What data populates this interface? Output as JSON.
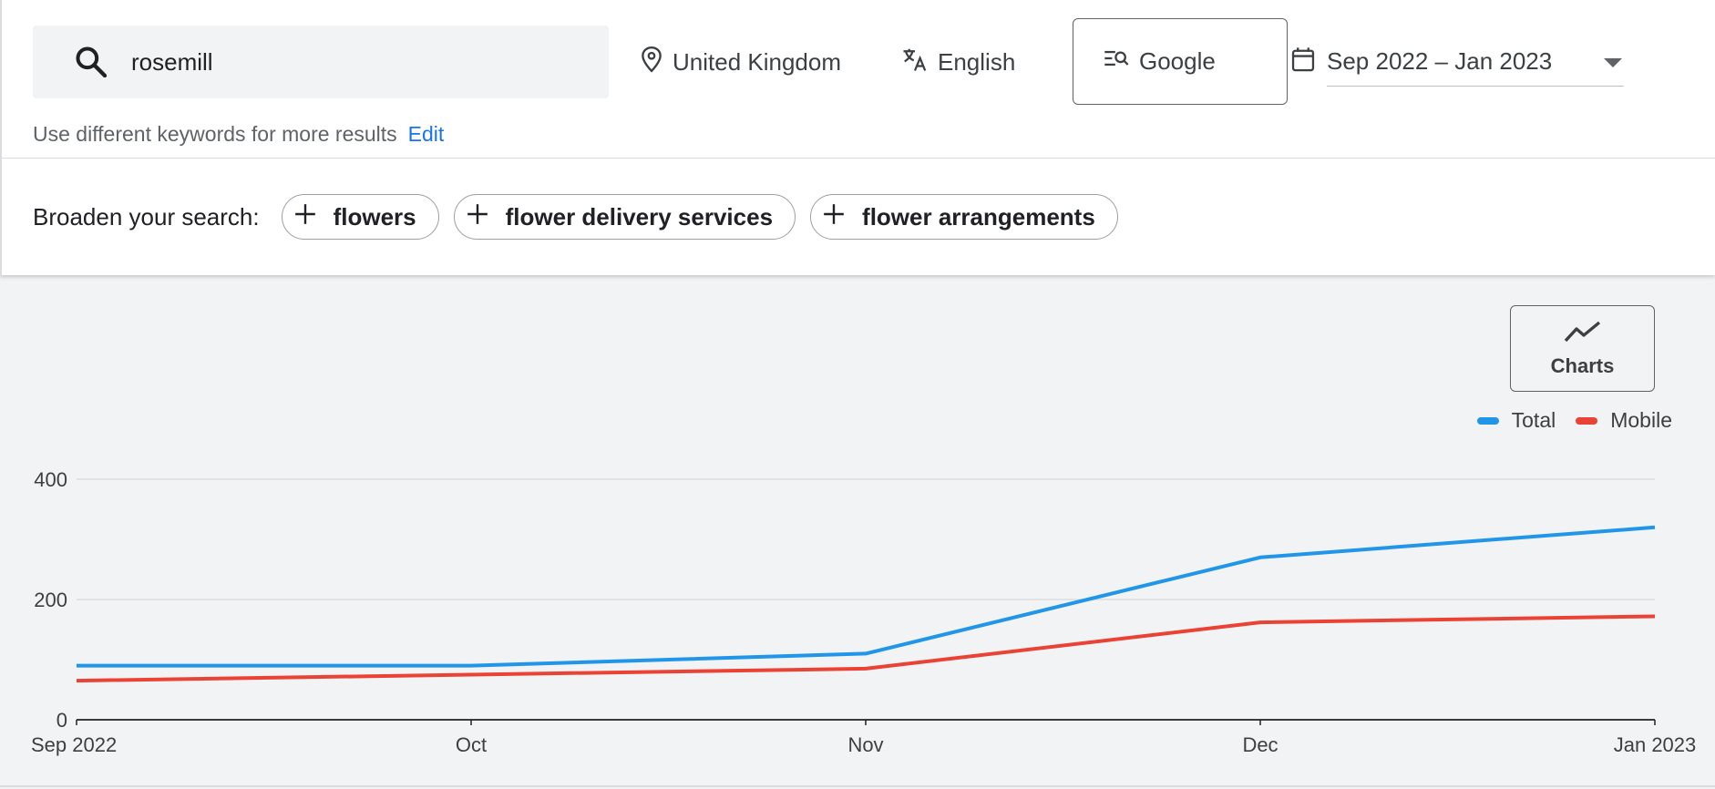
{
  "search": {
    "query": "rosemill"
  },
  "filters": {
    "location": "United Kingdom",
    "language": "English",
    "network": "Google",
    "date_range": "Sep 2022 – Jan 2023"
  },
  "hint": {
    "text": "Use different keywords for more results",
    "edit_label": "Edit"
  },
  "broaden": {
    "label": "Broaden your search:",
    "chips": [
      "flowers",
      "flower delivery services",
      "flower arrangements"
    ]
  },
  "charts_button": {
    "label": "Charts"
  },
  "colors": {
    "accent": "#1a73e8",
    "total": "#2196e8",
    "mobile": "#ea4335"
  },
  "chart_data": {
    "type": "line",
    "x": [
      "Sep 2022",
      "Oct",
      "Nov",
      "Dec",
      "Jan 2023"
    ],
    "ylim": [
      0,
      400
    ],
    "yticks": [
      0,
      200,
      400
    ],
    "grid": true,
    "legend_position": "top-right",
    "series": [
      {
        "name": "Total",
        "values": [
          90,
          90,
          110,
          270,
          320
        ]
      },
      {
        "name": "Mobile",
        "values": [
          65,
          75,
          85,
          162,
          172
        ]
      }
    ]
  }
}
